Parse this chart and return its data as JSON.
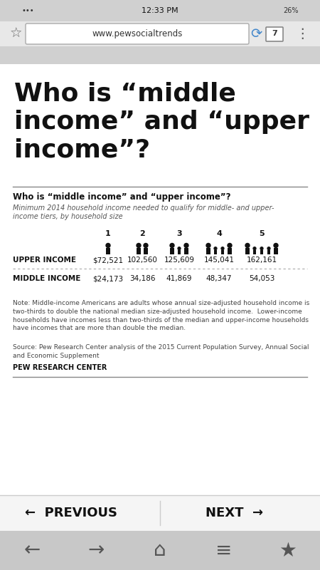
{
  "big_title": "Who is “middle\nincome” and “upper\nincome”?",
  "section_title": "Who is “middle income” and “upper income”?",
  "subtitle": "Minimum 2014 household income needed to qualify for middle- and upper-\nincome tiers, by household size",
  "household_sizes": [
    1,
    2,
    3,
    4,
    5
  ],
  "upper_income_label": "UPPER INCOME",
  "middle_income_label": "MIDDLE INCOME",
  "upper_values": [
    "$72,521",
    "102,560",
    "125,609",
    "145,041",
    "162,161"
  ],
  "middle_values": [
    "$24,173",
    "34,186",
    "41,869",
    "48,347",
    "54,053"
  ],
  "note": "Note: Middle-income Americans are adults whose annual size-adjusted household income is\ntwo-thirds to double the national median size-adjusted household income.  Lower-income\nhouseholds have incomes less than two-thirds of the median and upper-income households\nhave incomes that are more than double the median.",
  "source": "Source: Pew Research Center analysis of the 2015 Current Population Survey, Annual Social\nand Economic Supplement",
  "branding": "PEW RESEARCH CENTER",
  "url": "www.pewsocialtrends",
  "time": "12:33 PM",
  "battery": "26%",
  "nav_previous": "←  PREVIOUS",
  "nav_next": "NEXT  →",
  "bg_color": "#ffffff",
  "text_color": "#111111",
  "browser_bar_color": "#e0e0e0",
  "status_bar_color": "#c8c8c8",
  "toolbar_color": "#c8c8c8",
  "nav_bar_color": "#f0f0f0"
}
